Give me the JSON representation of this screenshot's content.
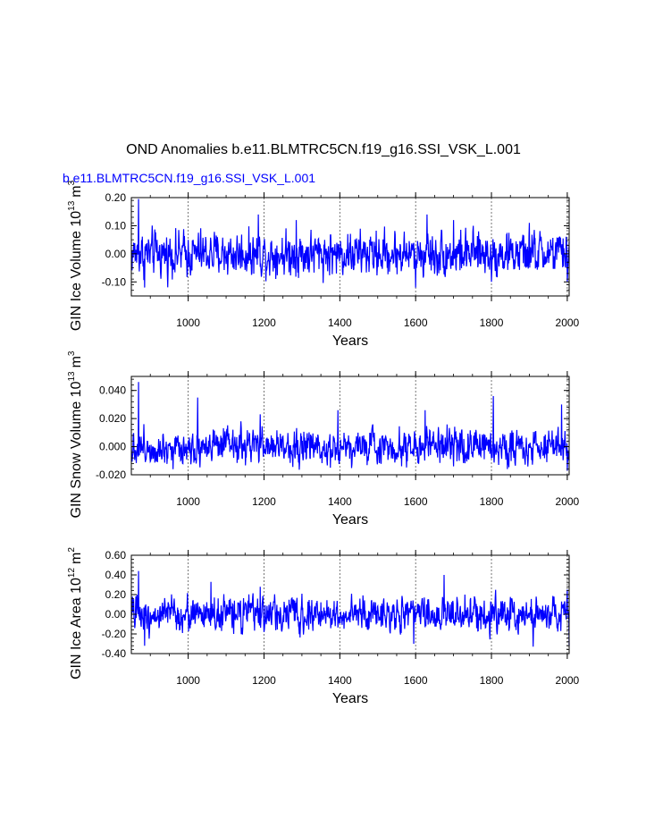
{
  "title": "OND Anomalies b.e11.BLMTRC5CN.f19_g16.SSI_VSK_L.001",
  "subtitle": "b.e11.BLMTRC5CN.f19_g16.SSI_VSK_L.001",
  "colors": {
    "series": "#0000ff",
    "axis": "#000000",
    "subtitle": "#0000ff",
    "gridline": "#555555"
  },
  "chart_data": [
    {
      "type": "line",
      "ylabel_main": "GIN Ice Volume 10",
      "ylabel_exp": "13",
      "ylabel_unit": "m",
      "ylabel_unit_exp": "3",
      "xlabel": "Years",
      "xlim": [
        850,
        2005
      ],
      "ylim": [
        -0.15,
        0.2
      ],
      "yticks": [
        -0.1,
        0.0,
        0.1,
        0.2
      ],
      "ytick_labels": [
        "-0.10",
        "0.00",
        "0.10",
        "0.20"
      ],
      "xticks": [
        1000,
        1200,
        1400,
        1600,
        1800,
        2000
      ],
      "xtick_labels": [
        "1000",
        "1200",
        "1400",
        "1600",
        "1800",
        "2000"
      ],
      "vgrid": [
        1000,
        1200,
        1400,
        1600,
        1800,
        2000
      ],
      "amplitude": 0.045,
      "min": -0.12,
      "max": 0.195,
      "peaks": [
        [
          869,
          0.195
        ],
        [
          1185,
          0.14
        ],
        [
          1285,
          0.12
        ],
        [
          1630,
          0.14
        ],
        [
          1700,
          0.12
        ],
        [
          1900,
          0.11
        ]
      ],
      "troughs": [
        [
          885,
          -0.12
        ],
        [
          1600,
          -0.12
        ],
        [
          1800,
          -0.1
        ],
        [
          2000,
          -0.1
        ]
      ]
    },
    {
      "type": "line",
      "ylabel_main": "GIN Snow Volume 10",
      "ylabel_exp": "13",
      "ylabel_unit": "m",
      "ylabel_unit_exp": "3",
      "xlabel": "Years",
      "xlim": [
        850,
        2005
      ],
      "ylim": [
        -0.02,
        0.05
      ],
      "yticks": [
        -0.02,
        0.0,
        0.02,
        0.04
      ],
      "ytick_labels": [
        "-0.020",
        "0.000",
        "0.020",
        "0.040"
      ],
      "xticks": [
        1000,
        1200,
        1400,
        1600,
        1800,
        2000
      ],
      "xtick_labels": [
        "1000",
        "1200",
        "1400",
        "1600",
        "1800",
        "2000"
      ],
      "vgrid": [
        1000,
        1200,
        1400,
        1600,
        1800,
        2000
      ],
      "amplitude": 0.007,
      "min": -0.017,
      "max": 0.046,
      "peaks": [
        [
          869,
          0.046
        ],
        [
          1025,
          0.035
        ],
        [
          1190,
          0.023
        ],
        [
          1395,
          0.026
        ],
        [
          1625,
          0.026
        ],
        [
          1805,
          0.036
        ],
        [
          1985,
          0.03
        ]
      ],
      "troughs": [
        [
          960,
          -0.016
        ],
        [
          1375,
          -0.015
        ],
        [
          1700,
          -0.014
        ],
        [
          2000,
          -0.017
        ]
      ]
    },
    {
      "type": "line",
      "ylabel_main": "GIN Ice Area 10",
      "ylabel_exp": "12",
      "ylabel_unit": "m",
      "ylabel_unit_exp": "2",
      "xlabel": "Years",
      "xlim": [
        850,
        2005
      ],
      "ylim": [
        -0.4,
        0.6
      ],
      "yticks": [
        -0.4,
        -0.2,
        0.0,
        0.2,
        0.4,
        0.6
      ],
      "ytick_labels": [
        "-0.40",
        "-0.20",
        "0.00",
        "0.20",
        "0.40",
        "0.60"
      ],
      "xticks": [
        1000,
        1200,
        1400,
        1600,
        1800,
        2000
      ],
      "xtick_labels": [
        "1000",
        "1200",
        "1400",
        "1600",
        "1800",
        "2000"
      ],
      "vgrid": [
        1000,
        1200,
        1400,
        1600,
        1800,
        2000
      ],
      "amplitude": 0.1,
      "min": -0.33,
      "max": 0.44,
      "peaks": [
        [
          869,
          0.44
        ],
        [
          1060,
          0.33
        ],
        [
          1190,
          0.28
        ],
        [
          1675,
          0.4
        ],
        [
          2000,
          0.25
        ]
      ],
      "troughs": [
        [
          885,
          -0.32
        ],
        [
          1595,
          -0.3
        ],
        [
          1910,
          -0.33
        ],
        [
          2005,
          -0.32
        ]
      ]
    }
  ]
}
